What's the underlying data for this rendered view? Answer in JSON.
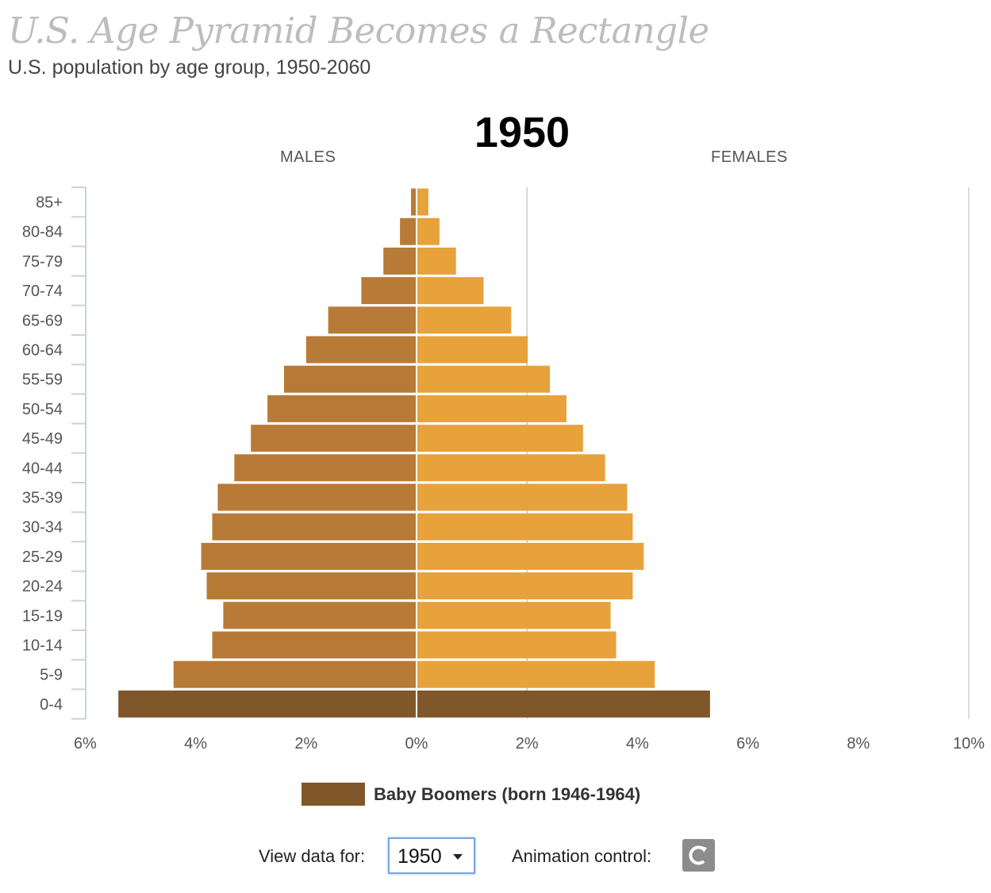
{
  "header": {
    "title": "U.S. Age Pyramid Becomes a Rectangle",
    "subtitle": "U.S. population by age group, 1950-2060"
  },
  "chart_data": {
    "type": "bar",
    "orientation": "horizontal-population-pyramid",
    "year_label": "1950",
    "left_label": "MALES",
    "right_label": "FEMALES",
    "categories": [
      "85+",
      "80-84",
      "75-79",
      "70-74",
      "65-69",
      "60-64",
      "55-59",
      "50-54",
      "45-49",
      "40-44",
      "35-39",
      "30-34",
      "25-29",
      "20-24",
      "15-19",
      "10-14",
      "5-9",
      "0-4"
    ],
    "series": [
      {
        "name": "MALES",
        "values": [
          0.1,
          0.3,
          0.6,
          1.0,
          1.6,
          2.0,
          2.4,
          2.7,
          3.0,
          3.3,
          3.6,
          3.7,
          3.9,
          3.8,
          3.5,
          3.7,
          4.4,
          5.4
        ]
      },
      {
        "name": "FEMALES",
        "values": [
          0.2,
          0.4,
          0.7,
          1.2,
          1.7,
          2.0,
          2.4,
          2.7,
          3.0,
          3.4,
          3.8,
          3.9,
          4.1,
          3.9,
          3.5,
          3.6,
          4.3,
          5.3
        ]
      }
    ],
    "highlight": {
      "name": "Baby Boomers (born 1946-1964)",
      "categories": [
        "0-4"
      ]
    },
    "x_ticks": [
      "6%",
      "4%",
      "2%",
      "0%",
      "2%",
      "4%",
      "6%",
      "8%",
      "10%"
    ],
    "xlim": [
      -6,
      10
    ],
    "reference_line_at": 2,
    "colors": {
      "male": "#b77b37",
      "female": "#e7a23c",
      "boomer": "#7f572b",
      "axis": "#c7d3de",
      "reference": "#cccccc",
      "tick_text": "#555555"
    }
  },
  "legend": {
    "label": "Baby Boomers (born 1946-1964)"
  },
  "controls": {
    "view_label": "View data for:",
    "selected_year": "1950",
    "animation_label": "Animation control:",
    "animation_icon": "replay-icon"
  }
}
